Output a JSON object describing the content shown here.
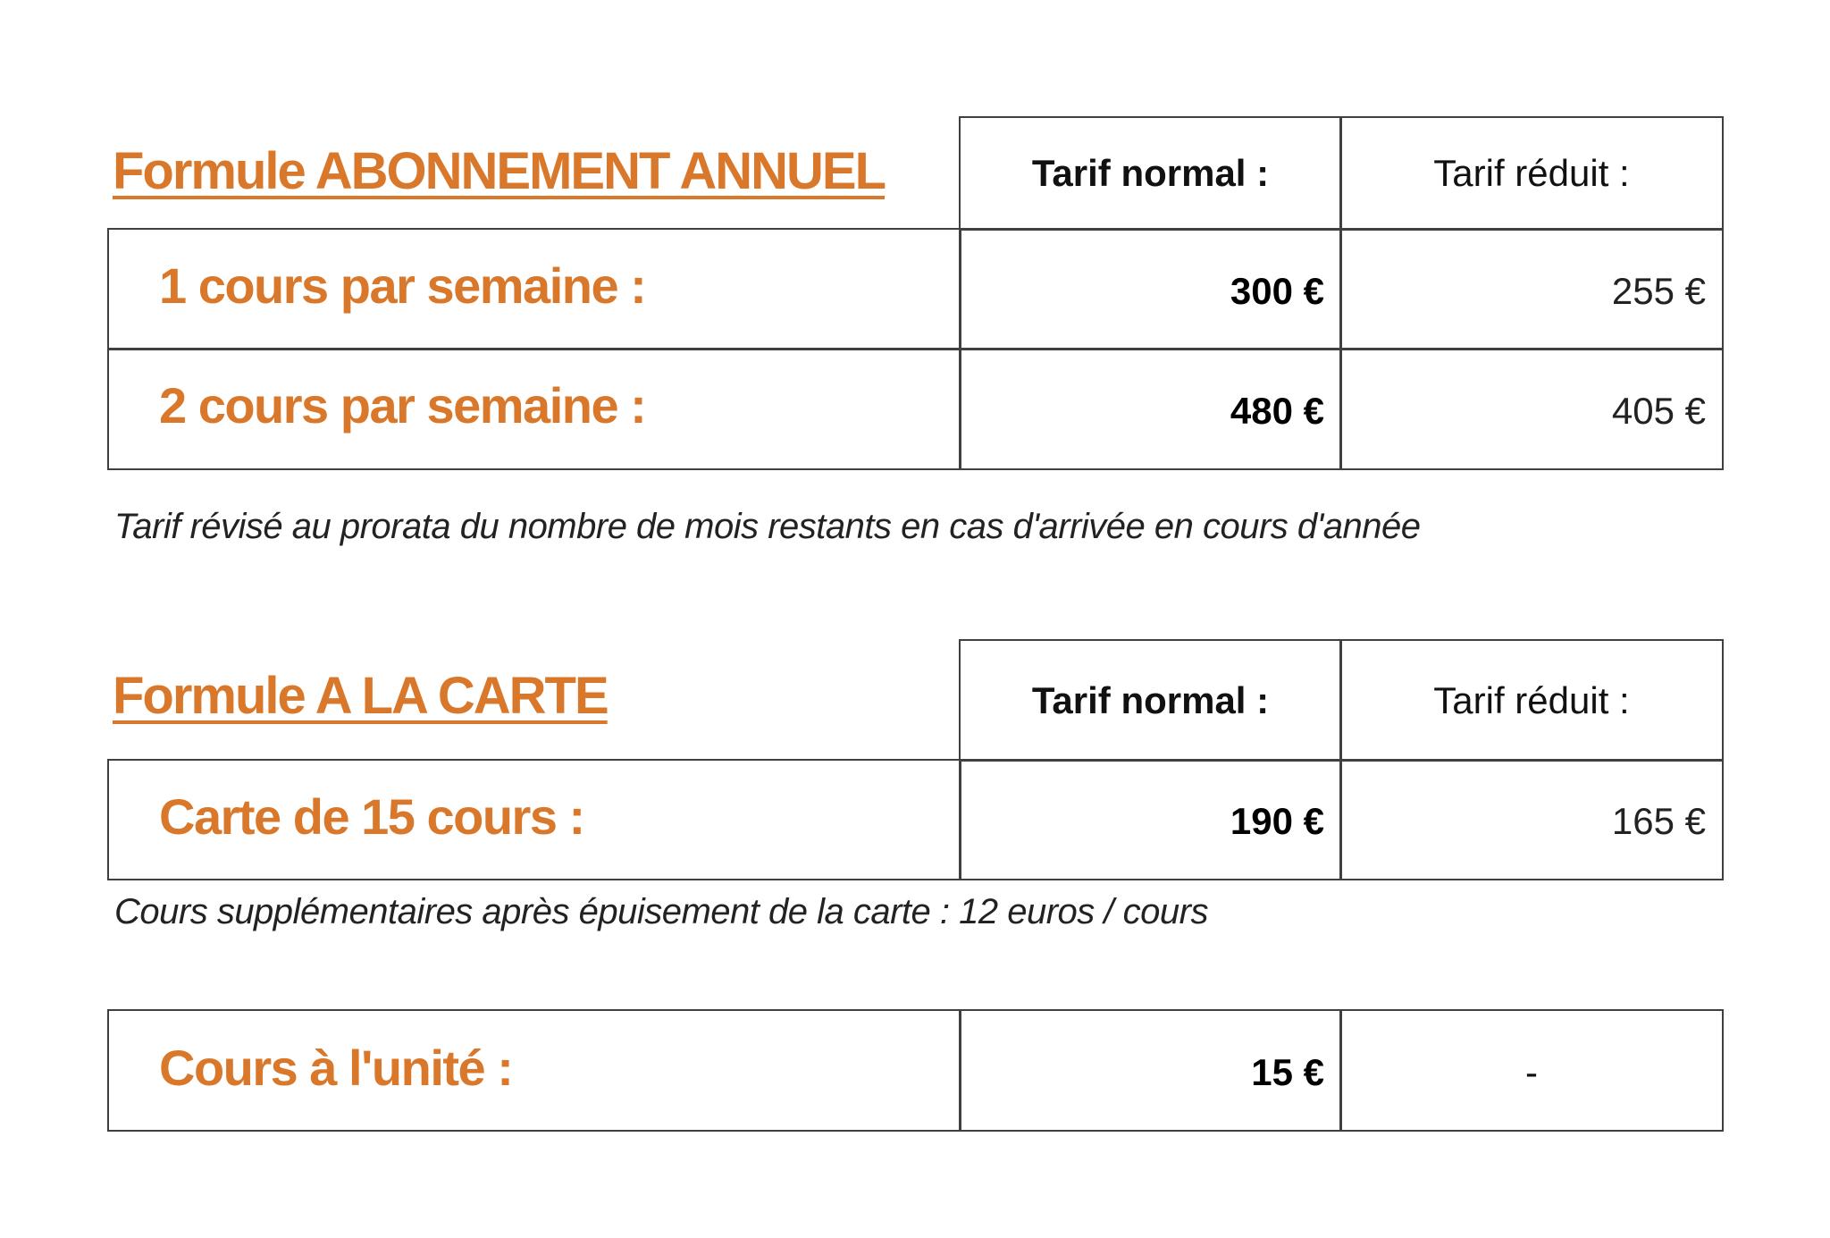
{
  "accent_color": "#D9782A",
  "abonnement": {
    "title": "Formule ABONNEMENT ANNUEL",
    "header_normal": "Tarif normal :",
    "header_reduit": "Tarif réduit :",
    "rows": [
      {
        "label": "1 cours par semaine :",
        "normal": "300 €",
        "reduit": "255 €"
      },
      {
        "label": "2 cours par semaine :",
        "normal": "480 €",
        "reduit": "405 €"
      }
    ],
    "note": "Tarif révisé au prorata du nombre de mois restants en cas d'arrivée en cours d'année"
  },
  "carte": {
    "title": "Formule A LA CARTE",
    "header_normal": "Tarif normal :",
    "header_reduit": "Tarif réduit :",
    "rows": [
      {
        "label": "Carte de 15 cours :",
        "normal": "190 €",
        "reduit": "165 €"
      }
    ],
    "note": "Cours supplémentaires après épuisement de la carte : 12 euros / cours"
  },
  "unite": {
    "label": "Cours à l'unité :",
    "normal": "15 €",
    "reduit": "-"
  }
}
